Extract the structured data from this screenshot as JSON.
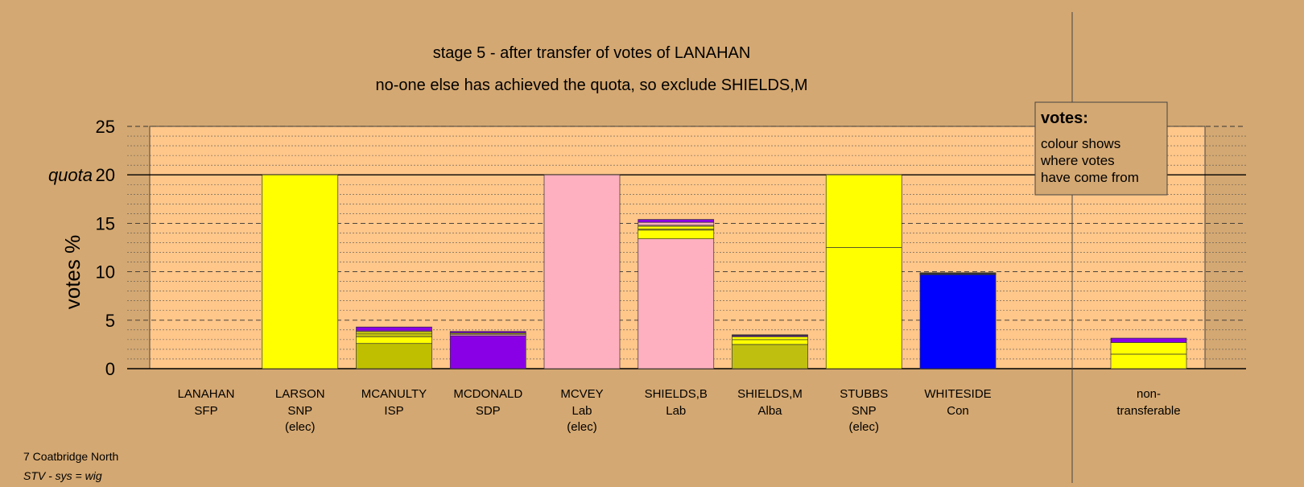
{
  "chart_data": {
    "type": "bar",
    "stacked": true,
    "title": "stage 5 - after transfer of votes of LANAHAN",
    "subtitle": "no-one else has achieved the quota, so exclude SHIELDS,M",
    "ylabel": "votes %",
    "ylim": [
      0,
      25
    ],
    "yticks": [
      0,
      5,
      10,
      15,
      20,
      25
    ],
    "quota": 20,
    "quota_label": "quota",
    "grid": true,
    "legend": {
      "title": "votes:",
      "lines": [
        "colour shows",
        "where votes",
        "have come from"
      ],
      "position": "top-right"
    },
    "party_colors": {
      "SNP": "#ffff00",
      "ISP": "#bfbf00",
      "SDP": "#8a00e6",
      "Lab": "#ffb0c0",
      "Alba": "#bfbf10",
      "Con": "#0000ff",
      "SFP": "#ffc080"
    },
    "categories": [
      {
        "name": "LANAHAN",
        "party": "SFP",
        "status": "",
        "segments": []
      },
      {
        "name": "LARSON",
        "party": "SNP",
        "status": "(elec)",
        "segments": [
          {
            "from": "SNP",
            "color": "#ffff00",
            "value": 20.0
          }
        ]
      },
      {
        "name": "MCANULTY",
        "party": "ISP",
        "status": "",
        "segments": [
          {
            "from": "ISP",
            "color": "#bfbf00",
            "value": 2.6
          },
          {
            "from": "SNP",
            "color": "#ffff00",
            "value": 0.7
          },
          {
            "from": "Alba",
            "color": "#bfbf10",
            "value": 0.3
          },
          {
            "from": "SNP",
            "color": "#ffff00",
            "value": 0.2
          },
          {
            "from": "SFP",
            "color": "#ffc080",
            "value": 0.1
          },
          {
            "from": "SDP",
            "color": "#8a00e6",
            "value": 0.4
          }
        ]
      },
      {
        "name": "MCDONALD",
        "party": "SDP",
        "status": "",
        "segments": [
          {
            "from": "SDP",
            "color": "#8a00e6",
            "value": 3.4
          },
          {
            "from": "Lab",
            "color": "#ffb0c0",
            "value": 0.15
          },
          {
            "from": "SNP",
            "color": "#ffff00",
            "value": 0.1
          },
          {
            "from": "Alba",
            "color": "#bfbf10",
            "value": 0.05
          },
          {
            "from": "SDP",
            "color": "#8a00e6",
            "value": 0.15
          }
        ]
      },
      {
        "name": "MCVEY",
        "party": "Lab",
        "status": "(elec)",
        "segments": [
          {
            "from": "Lab",
            "color": "#ffb0c0",
            "value": 20.0
          }
        ]
      },
      {
        "name": "SHIELDS,B",
        "party": "Lab",
        "status": "",
        "segments": [
          {
            "from": "Lab",
            "color": "#ffb0c0",
            "value": 13.4
          },
          {
            "from": "SNP",
            "color": "#ffff00",
            "value": 0.9
          },
          {
            "from": "Alba",
            "color": "#bfbf10",
            "value": 0.1
          },
          {
            "from": "SNP",
            "color": "#ffff00",
            "value": 0.3
          },
          {
            "from": "SFP",
            "color": "#ffc080",
            "value": 0.1
          },
          {
            "from": "Lab",
            "color": "#ffb0c0",
            "value": 0.3
          },
          {
            "from": "SDP",
            "color": "#8a00e6",
            "value": 0.3
          }
        ]
      },
      {
        "name": "SHIELDS,M",
        "party": "Alba",
        "status": "",
        "segments": [
          {
            "from": "Alba",
            "color": "#bfbf10",
            "value": 2.5
          },
          {
            "from": "SNP",
            "color": "#ffff00",
            "value": 0.5
          },
          {
            "from": "SNP",
            "color": "#ffff00",
            "value": 0.3
          },
          {
            "from": "SDP",
            "color": "#8a00e6",
            "value": 0.1
          },
          {
            "from": "Lab",
            "color": "#ffb0c0",
            "value": 0.05
          },
          {
            "from": "Con",
            "color": "#0000ff",
            "value": 0.05
          }
        ]
      },
      {
        "name": "STUBBS",
        "party": "SNP",
        "status": "(elec)",
        "segments": [
          {
            "from": "SNP",
            "color": "#ffff00",
            "value": 12.5
          },
          {
            "from": "SNP",
            "color": "#ffff00",
            "value": 7.5
          }
        ]
      },
      {
        "name": "WHITESIDE",
        "party": "Con",
        "status": "",
        "segments": [
          {
            "from": "Con",
            "color": "#0000ff",
            "value": 9.7
          },
          {
            "from": "Lab",
            "color": "#ffb0c0",
            "value": 0.05
          },
          {
            "from": "SNP",
            "color": "#ffff00",
            "value": 0.05
          },
          {
            "from": "Alba",
            "color": "#bfbf10",
            "value": 0.05
          },
          {
            "from": "SDP",
            "color": "#8a00e6",
            "value": 0.05
          }
        ]
      }
    ],
    "nontransferable": {
      "label1": "non-",
      "label2": "transferable",
      "segments": [
        {
          "from": "SNP",
          "color": "#ffff00",
          "value": 1.5
        },
        {
          "from": "SNP",
          "color": "#ffff00",
          "value": 1.2
        },
        {
          "from": "SDP",
          "color": "#8a00e6",
          "value": 0.45
        }
      ]
    }
  },
  "footer": {
    "area": "7 Coatbridge North",
    "system": "STV - sys = wig"
  }
}
